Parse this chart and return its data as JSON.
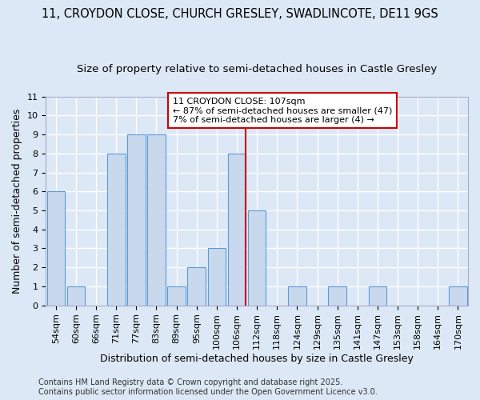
{
  "title_line1": "11, CROYDON CLOSE, CHURCH GRESLEY, SWADLINCOTE, DE11 9GS",
  "title_line2": "Size of property relative to semi-detached houses in Castle Gresley",
  "xlabel": "Distribution of semi-detached houses by size in Castle Gresley",
  "ylabel": "Number of semi-detached properties",
  "categories": [
    "54sqm",
    "60sqm",
    "66sqm",
    "71sqm",
    "77sqm",
    "83sqm",
    "89sqm",
    "95sqm",
    "100sqm",
    "106sqm",
    "112sqm",
    "118sqm",
    "124sqm",
    "129sqm",
    "135sqm",
    "141sqm",
    "147sqm",
    "153sqm",
    "158sqm",
    "164sqm",
    "170sqm"
  ],
  "values": [
    6,
    1,
    0,
    8,
    9,
    9,
    1,
    2,
    3,
    8,
    5,
    0,
    1,
    0,
    1,
    0,
    1,
    0,
    0,
    0,
    1
  ],
  "bar_color": "#c8d9ee",
  "bar_edge_color": "#5b9bd5",
  "highlight_index": 9,
  "highlight_line_color": "#cc0000",
  "ylim": [
    0,
    11
  ],
  "yticks": [
    0,
    1,
    2,
    3,
    4,
    5,
    6,
    7,
    8,
    9,
    10,
    11
  ],
  "annotation_title": "11 CROYDON CLOSE: 107sqm",
  "annotation_line1": "← 87% of semi-detached houses are smaller (47)",
  "annotation_line2": "7% of semi-detached houses are larger (4) →",
  "annotation_box_color": "#cc0000",
  "footer_line1": "Contains HM Land Registry data © Crown copyright and database right 2025.",
  "footer_line2": "Contains public sector information licensed under the Open Government Licence v3.0.",
  "bg_color": "#dce8f5",
  "grid_color": "#ffffff",
  "title_fontsize": 10.5,
  "subtitle_fontsize": 9.5,
  "axis_label_fontsize": 9,
  "tick_fontsize": 8,
  "annotation_fontsize": 8,
  "footer_fontsize": 7
}
